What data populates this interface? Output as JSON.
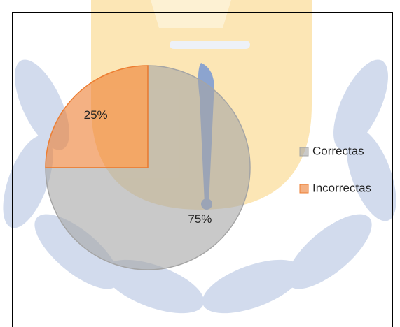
{
  "chart_data": {
    "type": "pie",
    "categories": [
      "Correctas",
      "Incorrectas"
    ],
    "values": [
      75,
      25
    ],
    "value_labels": [
      "75%",
      "25%"
    ],
    "colors": [
      "#a5a5a5",
      "#ed7d31"
    ],
    "legend": "right"
  }
}
